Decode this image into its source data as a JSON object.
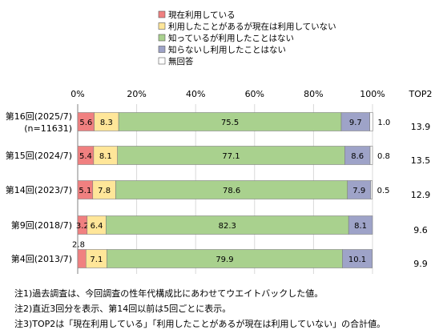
{
  "chart_data": {
    "type": "bar",
    "stacked": true,
    "orientation": "horizontal",
    "title": "",
    "xlim": [
      0,
      100
    ],
    "x_tick_labels": [
      "0%",
      "20%",
      "40%",
      "60%",
      "80%",
      "100%"
    ],
    "grid": true,
    "legend_position": "top",
    "categories": [
      {
        "label": "第16回(2025/7)",
        "sublabel": "(n=11631)"
      },
      {
        "label": "第15回(2024/7)",
        "sublabel": ""
      },
      {
        "label": "第14回(2023/7)",
        "sublabel": ""
      },
      {
        "label": "第9回(2018/7)",
        "sublabel": ""
      },
      {
        "label": "第4回(2013/7)",
        "sublabel": ""
      }
    ],
    "series": [
      {
        "name": "現在利用している",
        "color": "#f08080",
        "values": [
          5.6,
          5.4,
          5.1,
          3.2,
          2.8
        ],
        "labels": [
          "5.6",
          "5.4",
          "5.1",
          "3.2",
          "2.8"
        ]
      },
      {
        "name": "利用したことがあるが現在は利用していない",
        "color": "#ffe699",
        "values": [
          8.3,
          8.1,
          7.8,
          6.4,
          7.1
        ],
        "labels": [
          "8.3",
          "8.1",
          "7.8",
          "6.4",
          "7.1"
        ]
      },
      {
        "name": "知っているが利用したことはない",
        "color": "#a9d18e",
        "values": [
          75.5,
          77.1,
          78.6,
          82.3,
          79.9
        ],
        "labels": [
          "75.5",
          "77.1",
          "78.6",
          "82.3",
          "79.9"
        ]
      },
      {
        "name": "知らないし利用したことはない",
        "color": "#9ea3c8",
        "values": [
          9.7,
          8.6,
          7.9,
          8.1,
          10.1
        ],
        "labels": [
          "9.7",
          "8.6",
          "7.9",
          "8.1",
          "10.1"
        ]
      },
      {
        "name": "無回答",
        "color": "#ffffff",
        "values": [
          1.0,
          0.8,
          0.5,
          0,
          0
        ],
        "labels": [
          "1.0",
          "0.8",
          "0.5",
          "",
          ""
        ]
      }
    ],
    "top2": {
      "header": "TOP2",
      "labels": [
        "13.9",
        "13.5",
        "12.9",
        "9.6",
        "9.9"
      ]
    }
  },
  "notes": [
    "注1)過去調査は、今回調査の性年代構成比にあわせてウエイトバックした値。",
    "注2)直近3回分を表示、第14回以前は5回ごとに表示。",
    "注3)TOP2は「現在利用している」「利用したことがあるが現在は利用していない」の合計値。"
  ]
}
